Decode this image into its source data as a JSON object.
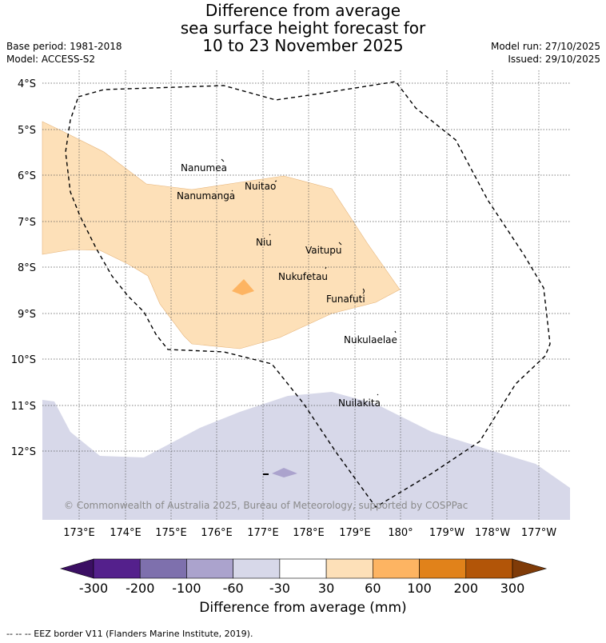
{
  "title": {
    "line1": "Difference from average",
    "line2": "sea surface height forecast for",
    "line3": "10 to 23 November 2025"
  },
  "meta": {
    "base_period": "Base period: 1981-2018",
    "model": "Model: ACCESS-S2",
    "model_run": "Model run: 27/10/2025",
    "issued": "Issued: 29/10/2025"
  },
  "map": {
    "lat_labels": [
      "4°S",
      "5°S",
      "6°S",
      "7°S",
      "8°S",
      "9°S",
      "10°S",
      "11°S",
      "12°S"
    ],
    "lon_labels": [
      "173°E",
      "174°E",
      "175°E",
      "176°E",
      "177°E",
      "178°E",
      "179°E",
      "180°",
      "179°W",
      "178°W",
      "177°W"
    ],
    "places": [
      "Nanumea",
      "Nanumanga",
      "Nuitao",
      "Niu",
      "Vaitupu",
      "Nukufetau",
      "Funafuti",
      "Nukulaelae",
      "Nuilakita"
    ],
    "credit": "© Commonwealth of Australia 2025, Bureau of Meteorology, supported by COSPPac"
  },
  "legend": {
    "ticks": [
      "-300",
      "-200",
      "-100",
      "-60",
      "-30",
      "30",
      "60",
      "100",
      "200",
      "300"
    ],
    "colors": [
      "#3b0f63",
      "#54208c",
      "#7e70ad",
      "#aba3cd",
      "#d7d8e9",
      "#ffffff",
      "#fde0b8",
      "#fdb462",
      "#e1821a",
      "#b25508",
      "#7f3b08"
    ],
    "label": "Difference from average (mm)"
  },
  "footer": "--  --  -- EEZ border V11 (Flanders Marine Institute, 2019)."
}
